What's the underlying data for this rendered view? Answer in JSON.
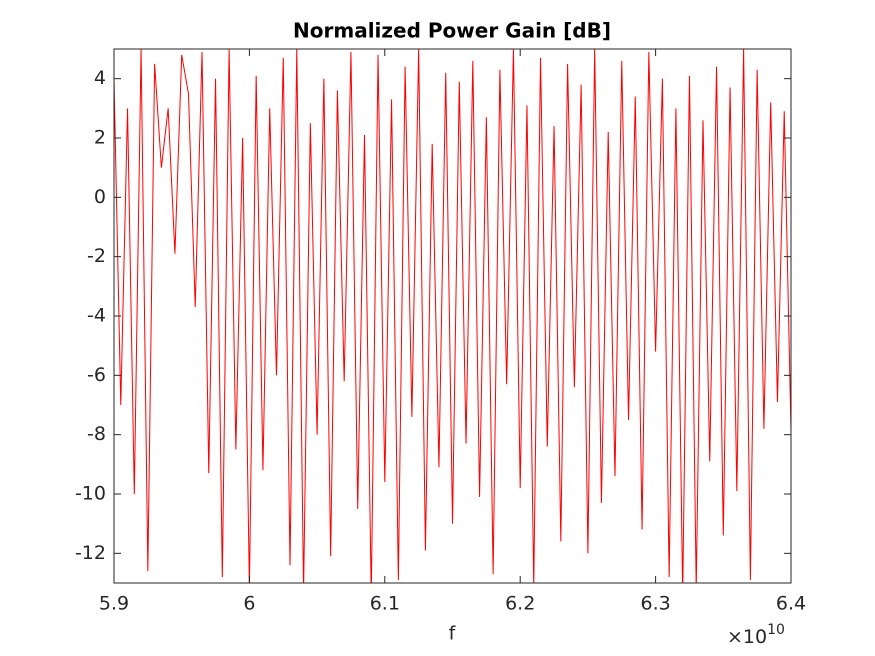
{
  "chart_data": {
    "type": "line",
    "title": "Normalized Power Gain [dB]",
    "x_label": "f",
    "x_multiplier": {
      "base": "×10",
      "exponent": "10"
    },
    "x": [
      5.9,
      5.905,
      5.91,
      5.915,
      5.92,
      5.925,
      5.93,
      5.935,
      5.94,
      5.945,
      5.95,
      5.955,
      5.96,
      5.965,
      5.97,
      5.975,
      5.98,
      5.985,
      5.99,
      5.995,
      6,
      6.005,
      6.01,
      6.015,
      6.02,
      6.025,
      6.03,
      6.035,
      6.04,
      6.045,
      6.05,
      6.055,
      6.06,
      6.065,
      6.07,
      6.075,
      6.08,
      6.085,
      6.09,
      6.095,
      6.1,
      6.105,
      6.11,
      6.115,
      6.12,
      6.125,
      6.13,
      6.135,
      6.14,
      6.145,
      6.15,
      6.155,
      6.16,
      6.165,
      6.17,
      6.175,
      6.18,
      6.185,
      6.19,
      6.195,
      6.2,
      6.205,
      6.21,
      6.215,
      6.22,
      6.225,
      6.23,
      6.235,
      6.24,
      6.245,
      6.25,
      6.255,
      6.26,
      6.265,
      6.27,
      6.275,
      6.28,
      6.285,
      6.29,
      6.295,
      6.3,
      6.305,
      6.31,
      6.315,
      6.32,
      6.325,
      6.33,
      6.335,
      6.34,
      6.345,
      6.35,
      6.355,
      6.36,
      6.365,
      6.37,
      6.375,
      6.38,
      6.385,
      6.39,
      6.395,
      6.4
    ],
    "series": [
      {
        "color": "#ff0000",
        "values": [
          4,
          -7,
          3,
          -10,
          5,
          -12.6,
          4.5,
          1,
          3,
          -1.9,
          4.8,
          3.5,
          -3.7,
          4.9,
          -9.3,
          4,
          -12.8,
          5,
          -8.5,
          2,
          -13.2,
          4.1,
          -9.2,
          3,
          -6,
          4.7,
          -12.4,
          5,
          -13.3,
          2.5,
          -8,
          4,
          -12.1,
          3.6,
          -6.2,
          4.9,
          -10.5,
          2.1,
          -13.5,
          4.8,
          -9.6,
          3.3,
          -12.9,
          4.4,
          -7.4,
          5,
          -11.9,
          1.8,
          -9.1,
          4.2,
          -11,
          3.9,
          -8.3,
          4.6,
          -10.1,
          2.7,
          -12.7,
          4.3,
          -6.3,
          5,
          -9.8,
          3.1,
          -13.1,
          4.7,
          -8.4,
          2.4,
          -11.6,
          4.5,
          -6.4,
          3.8,
          -12,
          5,
          -10.3,
          2.2,
          -9.4,
          4.6,
          -7.5,
          3.4,
          -11.2,
          4.9,
          -5.2,
          4,
          -12.8,
          3,
          -13.4,
          4.1,
          -13.2,
          2.6,
          -8.9,
          4.4,
          -11.4,
          3.7,
          -9.9,
          5,
          -12.9,
          4.3,
          -7.8,
          3.2,
          -6.9,
          2.9,
          -7.9
        ]
      }
    ],
    "xlim": [
      5.9,
      6.4
    ],
    "xticks": [
      5.9,
      6,
      6.1,
      6.2,
      6.3,
      6.4
    ],
    "ylim": [
      -13,
      5
    ],
    "yticks": [
      -12,
      -10,
      -8,
      -6,
      -4,
      -2,
      0,
      2,
      4
    ]
  }
}
